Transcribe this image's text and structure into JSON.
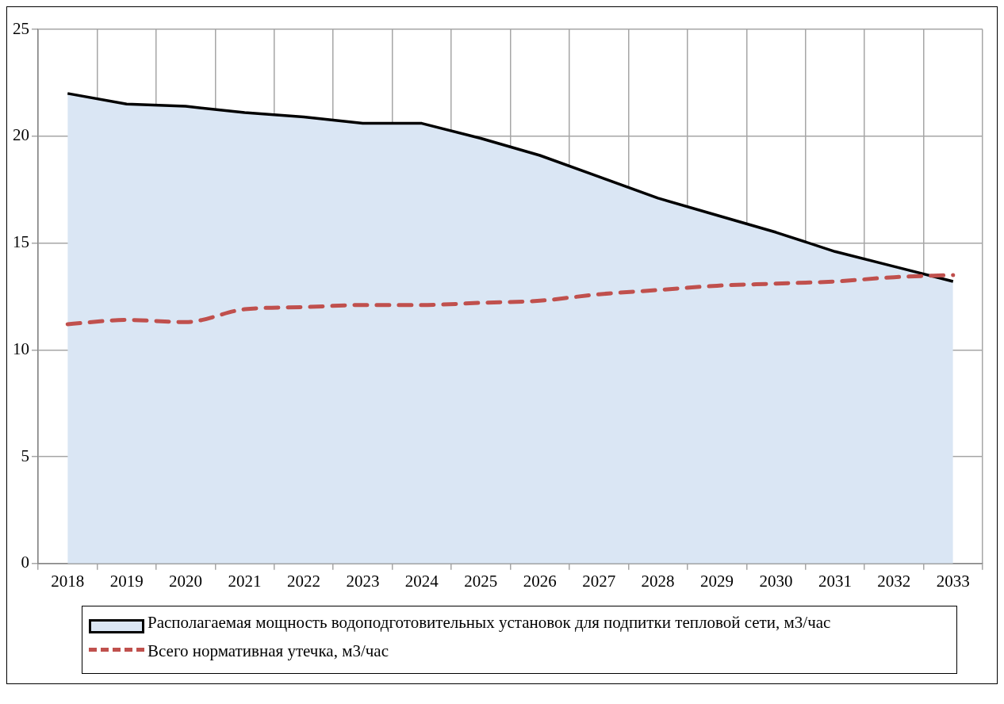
{
  "chart_data": {
    "type": "area",
    "categories": [
      "2018",
      "2019",
      "2020",
      "2021",
      "2022",
      "2023",
      "2024",
      "2025",
      "2026",
      "2027",
      "2028",
      "2029",
      "2030",
      "2031",
      "2032",
      "2033"
    ],
    "series": [
      {
        "name": "Располагаемая мощность водоподготовительных установок для подпитки тепловой сети, м3/час",
        "color": "#dae6f4",
        "values": [
          22.0,
          21.5,
          21.4,
          21.1,
          20.9,
          20.6,
          20.6,
          19.9,
          19.1,
          18.1,
          17.1,
          16.3,
          15.5,
          14.6,
          13.9,
          13.2
        ]
      },
      {
        "name": "Всего нормативная утечка, м3/час",
        "type": "line",
        "line_style": "dashed",
        "marker": "none",
        "color": "#c0504d",
        "values": [
          11.2,
          11.4,
          11.3,
          11.9,
          12.0,
          12.1,
          12.1,
          12.2,
          12.3,
          12.6,
          12.8,
          13.0,
          13.1,
          13.2,
          13.4,
          13.5
        ]
      }
    ],
    "ylim": [
      0,
      25
    ],
    "yticks": [
      0,
      5,
      10,
      15,
      20,
      25
    ],
    "grid": true,
    "legend": "bottom"
  }
}
